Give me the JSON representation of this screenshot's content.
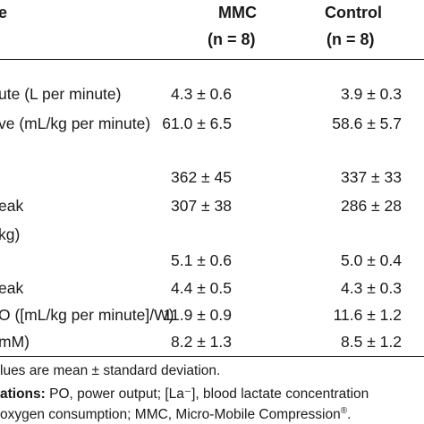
{
  "header": {
    "col0": "e",
    "mmc_title": "MMC",
    "mmc_n": "(n = 8)",
    "control_title": "Control",
    "control_n": "(n = 8)"
  },
  "rows": [
    {
      "label": "ute (L per minute)",
      "mmc": "4.3 ± 0.6",
      "control": "3.9 ± 0.3"
    },
    {
      "label": "ve (mL/kg per minute)",
      "mmc": "61.0 ± 6.5",
      "control": "58.6 ± 5.7"
    },
    {
      "label": "",
      "mmc": "362 ± 45",
      "control": "337 ± 33"
    },
    {
      "label": "eak",
      "mmc": "307 ± 38",
      "control": "286 ± 28"
    },
    {
      "label": "kg)",
      "mmc": "",
      "control": ""
    },
    {
      "label": "",
      "mmc": "5.1 ± 0.6",
      "control": "5.0 ± 0.4"
    },
    {
      "label": "eak",
      "mmc": "4.4 ± 0.5",
      "control": "4.3 ± 0.3"
    },
    {
      "label": "O ([mL/kg per minute]/W)",
      "mmc": "11.9 ± 0.9",
      "control": "11.6 ± 1.2"
    },
    {
      "label": "mM)",
      "mmc": "8.2 ± 1.3",
      "control": "8.5 ± 1.2"
    }
  ],
  "footnote": {
    "line1": "lues are mean ± standard deviation.",
    "line2_bold": "ations:",
    "line2_rest": " PO, power output; [La⁻], blood lactate concentration",
    "line3": "oxygen consumption; MMC, Micro-Mobile Compression",
    "line3_mark": "®",
    "line3_end": "."
  }
}
